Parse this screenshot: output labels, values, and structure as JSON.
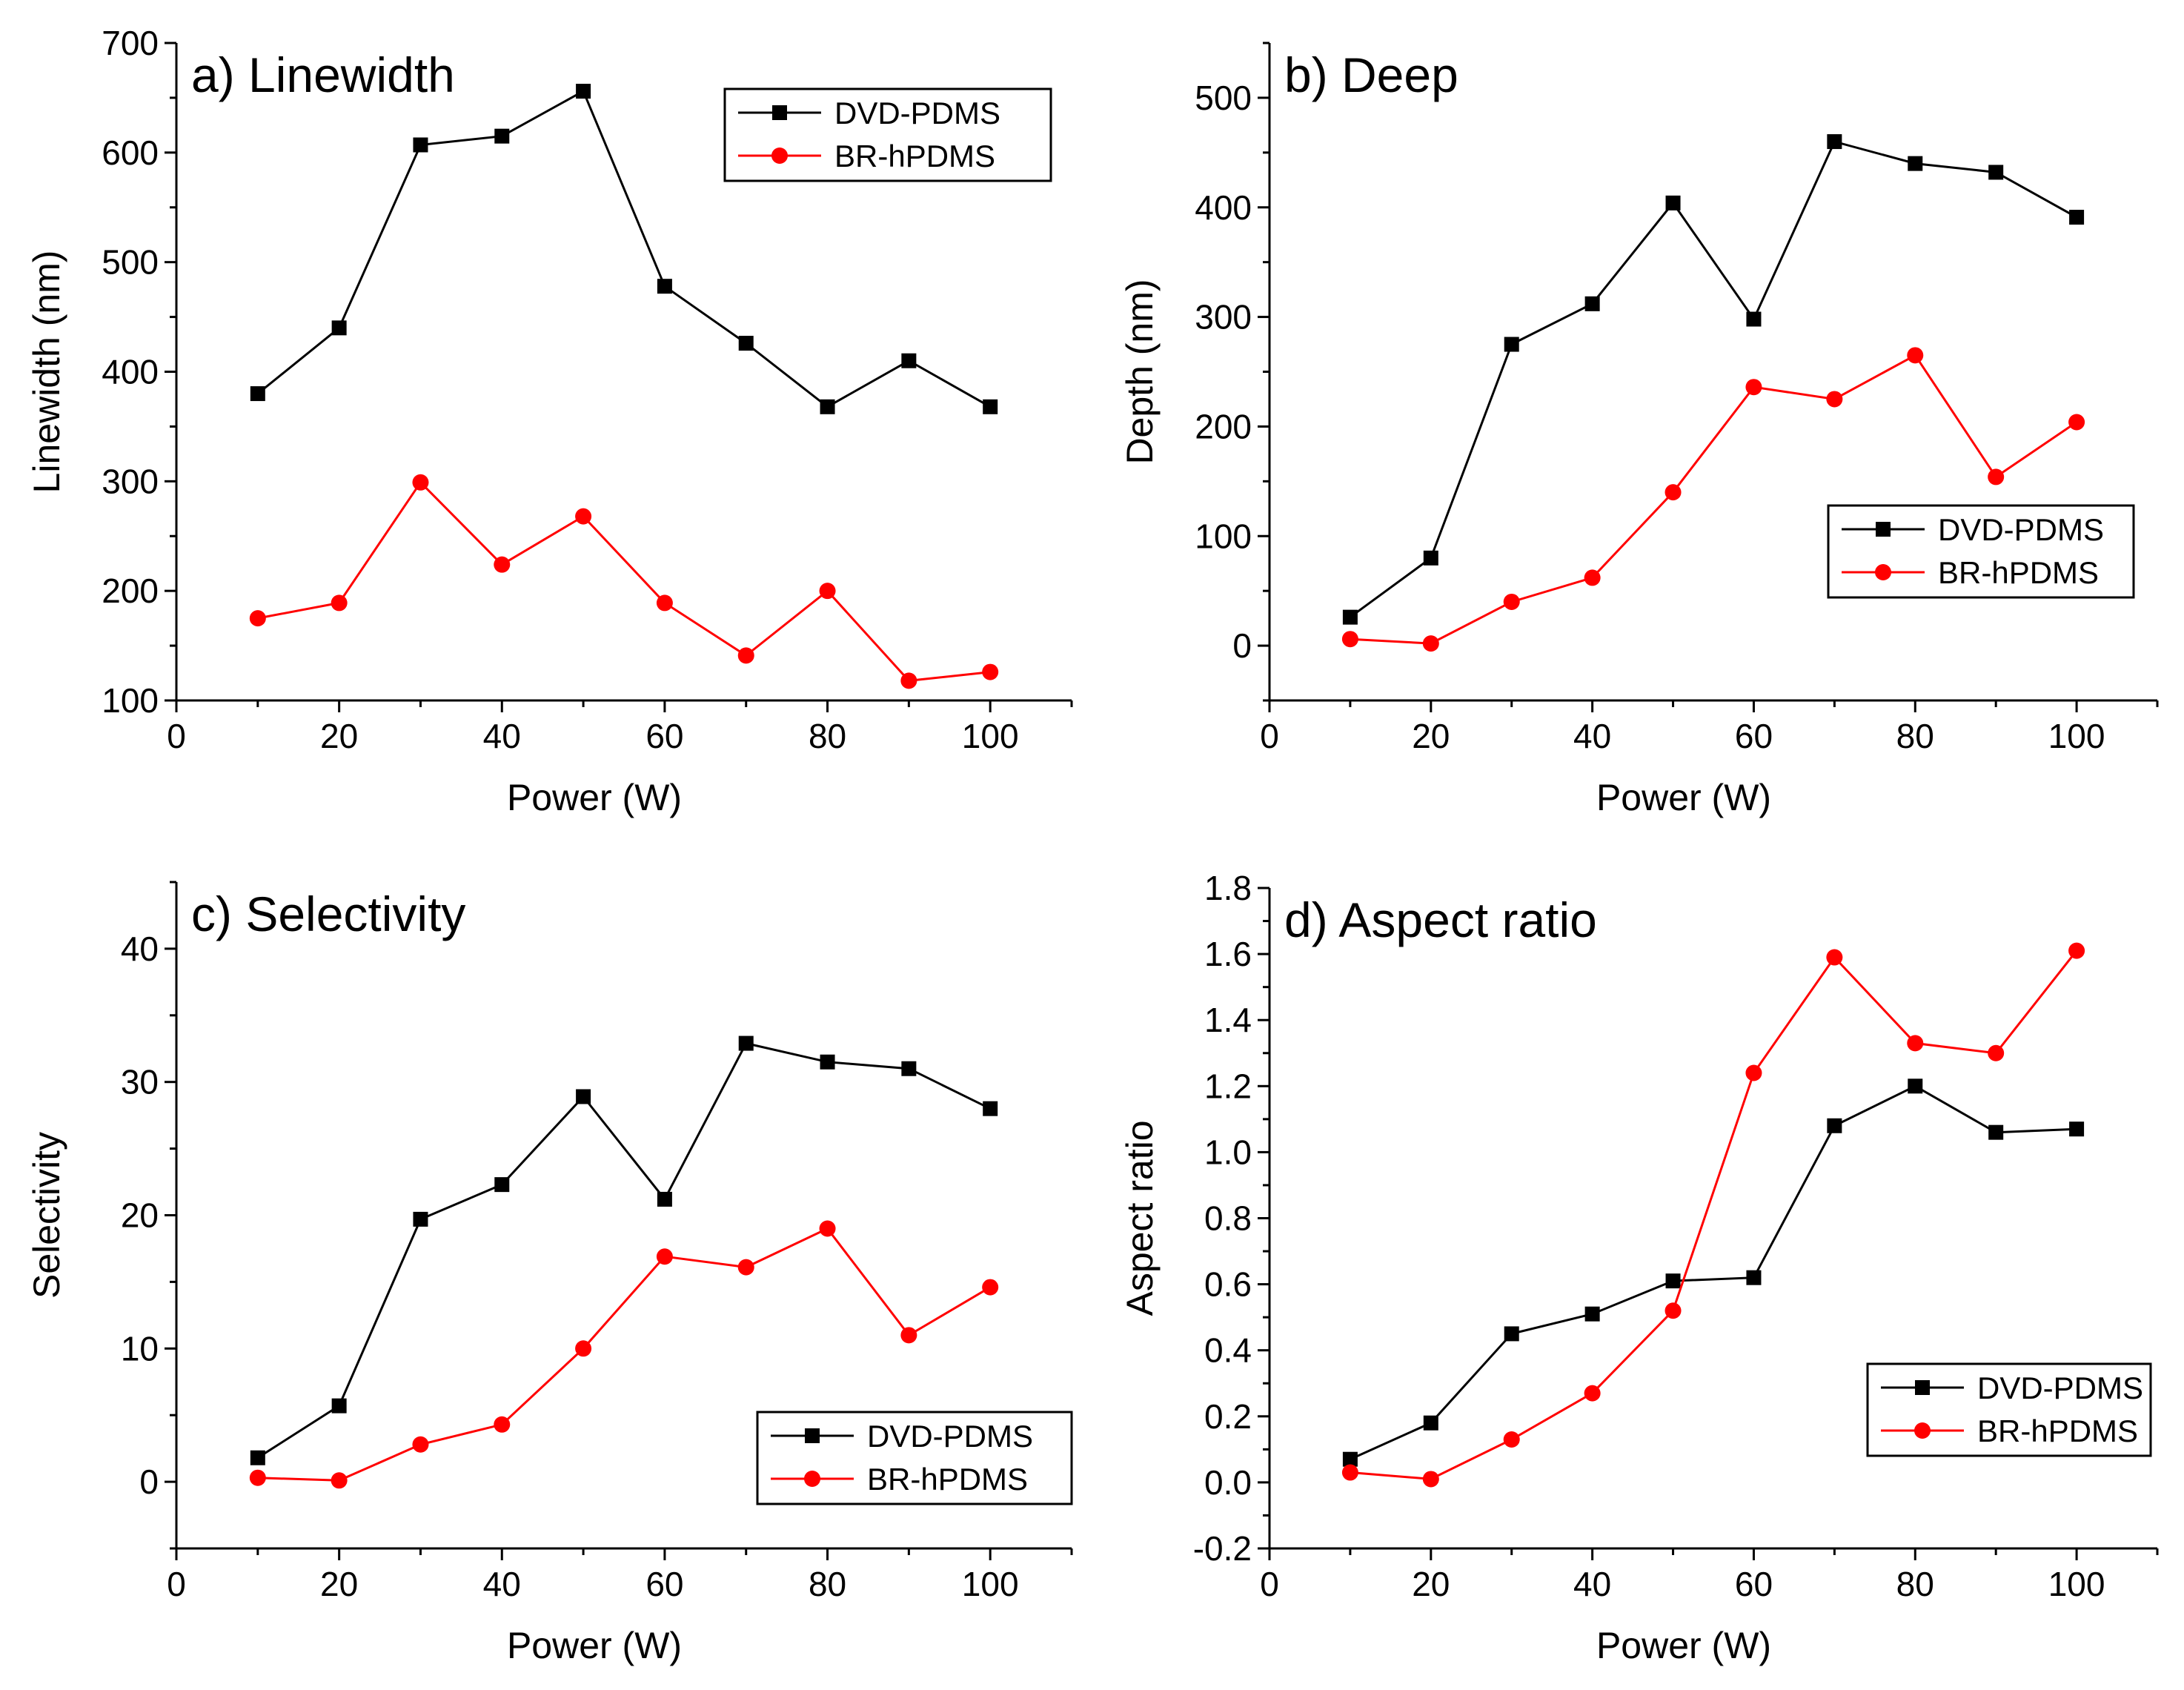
{
  "chart_data": [
    {
      "id": "a",
      "type": "line",
      "title": "a) Linewidth",
      "xlabel": "Power (W)",
      "ylabel": "Linewidth (nm)",
      "xlim": [
        0,
        110
      ],
      "ylim": [
        100,
        700
      ],
      "xticks": [
        0,
        20,
        40,
        60,
        80,
        100
      ],
      "yticks": [
        100,
        200,
        300,
        400,
        500,
        600,
        700
      ],
      "ytick_labels": [
        "100",
        "200",
        "300",
        "400",
        "500",
        "600",
        "700"
      ],
      "legend_position": "top-right",
      "x": [
        10,
        20,
        30,
        40,
        50,
        60,
        70,
        80,
        90,
        100
      ],
      "series": [
        {
          "name": "DVD-PDMS",
          "color": "#000000",
          "marker": "square",
          "values": [
            380,
            440,
            607,
            615,
            656,
            478,
            426,
            368,
            410,
            368
          ]
        },
        {
          "name": "BR-hPDMS",
          "color": "#ff0000",
          "marker": "circle",
          "values": [
            175,
            189,
            299,
            224,
            268,
            189,
            141,
            200,
            118,
            126
          ]
        }
      ]
    },
    {
      "id": "b",
      "type": "line",
      "title": "b) Deep",
      "xlabel": "Power (W)",
      "ylabel": "Depth (nm)",
      "xlim": [
        0,
        110
      ],
      "ylim": [
        -50,
        550
      ],
      "xticks": [
        0,
        20,
        40,
        60,
        80,
        100
      ],
      "yticks": [
        0,
        100,
        200,
        300,
        400,
        500
      ],
      "ytick_labels": [
        "0",
        "100",
        "200",
        "300",
        "400",
        "500"
      ],
      "legend_position": "center-right",
      "x": [
        10,
        20,
        30,
        40,
        50,
        60,
        70,
        80,
        90,
        100
      ],
      "series": [
        {
          "name": "DVD-PDMS",
          "color": "#000000",
          "marker": "square",
          "values": [
            26,
            80,
            275,
            312,
            404,
            298,
            460,
            440,
            432,
            391
          ]
        },
        {
          "name": "BR-hPDMS",
          "color": "#ff0000",
          "marker": "circle",
          "values": [
            6,
            2,
            40,
            62,
            140,
            236,
            225,
            265,
            154,
            204
          ]
        }
      ]
    },
    {
      "id": "c",
      "type": "line",
      "title": "c) Selectivity",
      "xlabel": "Power (W)",
      "ylabel": "Selectivity",
      "xlim": [
        0,
        110
      ],
      "ylim": [
        -5,
        45
      ],
      "xticks": [
        0,
        20,
        40,
        60,
        80,
        100
      ],
      "yticks": [
        0,
        10,
        20,
        30,
        40
      ],
      "ytick_labels": [
        "0",
        "10",
        "20",
        "30",
        "40"
      ],
      "legend_position": "bottom-right",
      "x": [
        10,
        20,
        30,
        40,
        50,
        60,
        70,
        80,
        90,
        100
      ],
      "series": [
        {
          "name": "DVD-PDMS",
          "color": "#000000",
          "marker": "square",
          "values": [
            1.8,
            5.7,
            19.7,
            22.3,
            28.9,
            21.2,
            32.9,
            31.5,
            31.0,
            28.0
          ]
        },
        {
          "name": "BR-hPDMS",
          "color": "#ff0000",
          "marker": "circle",
          "values": [
            0.3,
            0.1,
            2.8,
            4.3,
            10.0,
            16.9,
            16.1,
            19.0,
            11.0,
            14.6
          ]
        }
      ]
    },
    {
      "id": "d",
      "type": "line",
      "title": "d) Aspect ratio",
      "xlabel": "Power (W)",
      "ylabel": "Aspect ratio",
      "xlim": [
        0,
        110
      ],
      "ylim": [
        -0.2,
        1.8
      ],
      "xticks": [
        0,
        20,
        40,
        60,
        80,
        100
      ],
      "yticks": [
        -0.2,
        0.0,
        0.2,
        0.4,
        0.6,
        0.8,
        1.0,
        1.2,
        1.4,
        1.6,
        1.8
      ],
      "ytick_labels": [
        "-0.2",
        "0.0",
        "0.2",
        "0.4",
        "0.6",
        "0.8",
        "1.0",
        "1.2",
        "1.4",
        "1.6",
        "1.8"
      ],
      "legend_position": "bottom-right",
      "x": [
        10,
        20,
        30,
        40,
        50,
        60,
        70,
        80,
        90,
        100
      ],
      "series": [
        {
          "name": "DVD-PDMS",
          "color": "#000000",
          "marker": "square",
          "values": [
            0.07,
            0.18,
            0.45,
            0.51,
            0.61,
            0.62,
            1.08,
            1.2,
            1.06,
            1.07
          ]
        },
        {
          "name": "BR-hPDMS",
          "color": "#ff0000",
          "marker": "circle",
          "values": [
            0.03,
            0.01,
            0.13,
            0.27,
            0.52,
            1.24,
            1.59,
            1.33,
            1.3,
            1.61
          ]
        }
      ]
    }
  ]
}
